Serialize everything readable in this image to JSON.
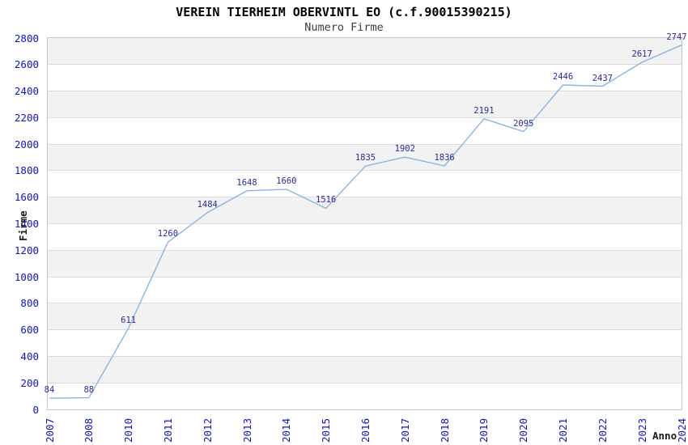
{
  "chart_data": {
    "type": "line",
    "title": "VEREIN TIERHEIM OBERVINTL EO (c.f.90015390215)",
    "subtitle": "Numero Firme",
    "xlabel": "Anno",
    "ylabel": "Firme",
    "categories": [
      "2007",
      "2008",
      "2010",
      "2011",
      "2012",
      "2013",
      "2014",
      "2015",
      "2016",
      "2017",
      "2018",
      "2019",
      "2020",
      "2021",
      "2022",
      "2023",
      "2024"
    ],
    "series": [
      {
        "name": "Numero Firme",
        "values": [
          84,
          88,
          611,
          1260,
          1484,
          1648,
          1660,
          1516,
          1835,
          1902,
          1836,
          2191,
          2095,
          2446,
          2437,
          2617,
          2747
        ]
      }
    ],
    "ylim": [
      0,
      2800
    ],
    "ytick_step": 200,
    "grid": "horizontal-bands",
    "legend": "none",
    "colors": {
      "line": "#88b6e6",
      "data_label": "#2a2a9c",
      "tick_label": "#1212cc",
      "band_gray": "#f2f2f2",
      "band_white": "#ffffff",
      "gridline": "#dcdcdc",
      "plot_border": "#c6c6c6",
      "title": "#000000",
      "subtitle": "#3c3c3c",
      "axis_title": "#1a1a1a"
    }
  }
}
